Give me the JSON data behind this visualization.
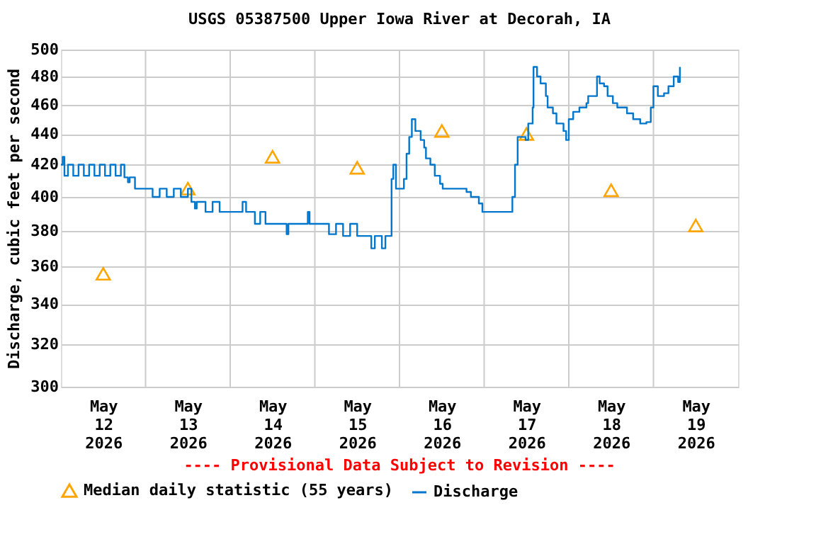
{
  "chart_data": {
    "type": "step",
    "title": "USGS 05387500 Upper Iowa River at Decorah, IA",
    "ylabel": "Discharge, cubic feet per second",
    "annotations": [
      "---- Provisional Data Subject to Revision ----"
    ],
    "log": true,
    "grid": true,
    "legend": "bottom",
    "xlim": [
      "2026-05-12T00:00",
      "2026-05-20T00:00"
    ],
    "xticks": [
      {
        "value": "2026-05-12T12:00",
        "label": "May 12 2026"
      },
      {
        "value": "2026-05-13T00:00",
        "label": null
      },
      {
        "value": "2026-05-13T12:00",
        "label": "May 13 2026"
      },
      {
        "value": "2026-05-14T00:00",
        "label": null
      },
      {
        "value": "2026-05-14T12:00",
        "label": "May 14 2026"
      },
      {
        "value": "2026-05-15T00:00",
        "label": null
      },
      {
        "value": "2026-05-15T12:00",
        "label": "May 15 2026"
      },
      {
        "value": "2026-05-16T00:00",
        "label": null
      },
      {
        "value": "2026-05-16T12:00",
        "label": "May 16 2026"
      },
      {
        "value": "2026-05-17T00:00",
        "label": null
      },
      {
        "value": "2026-05-17T12:00",
        "label": "May 17 2026"
      },
      {
        "value": "2026-05-18T00:00",
        "label": null
      },
      {
        "value": "2026-05-18T12:00",
        "label": "May 18 2026"
      },
      {
        "value": "2026-05-19T00:00",
        "label": null
      },
      {
        "value": "2026-05-19T12:00",
        "label": "May 19 2026"
      }
    ],
    "ylim": [
      300,
      500
    ],
    "yticks": [
      300,
      320,
      340,
      360,
      380,
      400,
      420,
      440,
      460,
      480,
      500
    ],
    "series": [
      {
        "name": "Median daily statistic (55 years)",
        "type": "scatter",
        "marker": "triangle",
        "color": "#ffa500",
        "x": [
          "2026-05-12T12:00",
          "2026-05-13T12:00",
          "2026-05-14T12:00",
          "2026-05-15T12:00",
          "2026-05-16T12:00",
          "2026-05-17T12:00",
          "2026-05-18T12:00",
          "2026-05-19T12:00"
        ],
        "values": [
          356,
          405,
          425,
          418,
          442,
          440,
          404,
          383
        ]
      },
      {
        "name": "Discharge",
        "color": "#0077cc",
        "x": [
          "2026-05-12T00:00",
          "2026-05-12T00:30",
          "2026-05-12T01:00",
          "2026-05-12T02:00",
          "2026-05-12T03:30",
          "2026-05-12T05:00",
          "2026-05-12T06:30",
          "2026-05-12T08:00",
          "2026-05-12T09:30",
          "2026-05-12T11:00",
          "2026-05-12T12:30",
          "2026-05-12T14:00",
          "2026-05-12T15:30",
          "2026-05-12T17:00",
          "2026-05-12T18:00",
          "2026-05-12T19:00",
          "2026-05-12T19:30",
          "2026-05-12T21:00",
          "2026-05-13T02:00",
          "2026-05-13T04:00",
          "2026-05-13T06:00",
          "2026-05-13T08:00",
          "2026-05-13T10:00",
          "2026-05-13T12:00",
          "2026-05-13T13:00",
          "2026-05-13T14:00",
          "2026-05-13T14:30",
          "2026-05-13T17:00",
          "2026-05-13T19:00",
          "2026-05-13T21:00",
          "2026-05-14T03:30",
          "2026-05-14T04:30",
          "2026-05-14T07:00",
          "2026-05-14T08:30",
          "2026-05-14T10:00",
          "2026-05-14T16:00",
          "2026-05-14T16:30",
          "2026-05-14T22:00",
          "2026-05-14T22:30",
          "2026-05-15T04:00",
          "2026-05-15T06:00",
          "2026-05-15T08:00",
          "2026-05-15T10:00",
          "2026-05-15T12:00",
          "2026-05-15T16:00",
          "2026-05-15T17:00",
          "2026-05-15T19:00",
          "2026-05-15T20:00",
          "2026-05-15T21:45",
          "2026-05-15T22:15",
          "2026-05-15T23:00",
          "2026-05-16T01:15",
          "2026-05-16T02:00",
          "2026-05-16T02:45",
          "2026-05-16T03:30",
          "2026-05-16T04:30",
          "2026-05-16T06:00",
          "2026-05-16T07:00",
          "2026-05-16T07:30",
          "2026-05-16T08:45",
          "2026-05-16T10:00",
          "2026-05-16T11:30",
          "2026-05-16T12:15",
          "2026-05-16T19:00",
          "2026-05-16T20:15",
          "2026-05-16T22:30",
          "2026-05-16T23:30",
          "2026-05-17T08:00",
          "2026-05-17T08:45",
          "2026-05-17T09:30",
          "2026-05-17T11:45",
          "2026-05-17T12:30",
          "2026-05-17T13:45",
          "2026-05-17T14:00",
          "2026-05-17T15:00",
          "2026-05-17T16:00",
          "2026-05-17T17:30",
          "2026-05-17T18:00",
          "2026-05-17T19:30",
          "2026-05-17T20:30",
          "2026-05-17T22:30",
          "2026-05-17T23:15",
          "2026-05-18T00:00",
          "2026-05-18T01:15",
          "2026-05-18T03:00",
          "2026-05-18T05:00",
          "2026-05-18T05:30",
          "2026-05-18T08:00",
          "2026-05-18T08:45",
          "2026-05-18T10:00",
          "2026-05-18T11:00",
          "2026-05-18T12:30",
          "2026-05-18T13:45",
          "2026-05-18T16:30",
          "2026-05-18T18:15",
          "2026-05-18T20:15",
          "2026-05-18T22:00",
          "2026-05-18T23:15",
          "2026-05-19T00:00",
          "2026-05-19T01:15",
          "2026-05-19T03:00",
          "2026-05-19T04:15",
          "2026-05-19T05:45",
          "2026-05-19T07:00",
          "2026-05-19T07:30"
        ],
        "values": [
          420,
          425,
          413,
          420,
          413,
          420,
          413,
          420,
          413,
          420,
          413,
          420,
          413,
          420,
          412,
          409,
          412,
          405,
          400,
          405,
          400,
          405,
          400,
          405,
          397,
          393,
          397,
          391,
          397,
          391,
          397,
          391,
          384,
          391,
          384,
          378,
          384,
          391,
          384,
          378,
          384,
          377,
          384,
          377,
          370,
          377,
          370,
          377,
          411,
          420,
          405,
          411,
          427,
          438,
          450,
          442,
          436,
          431,
          424,
          420,
          413,
          408,
          405,
          403,
          400,
          396,
          391,
          400,
          420,
          438,
          436,
          447,
          458,
          487,
          480,
          475,
          466,
          458,
          454,
          447,
          442,
          436,
          450,
          455,
          458,
          461,
          466,
          480,
          475,
          473,
          466,
          461,
          458,
          454,
          450,
          447,
          448,
          458,
          473,
          466,
          468,
          473,
          480,
          476,
          487
        ]
      }
    ]
  }
}
